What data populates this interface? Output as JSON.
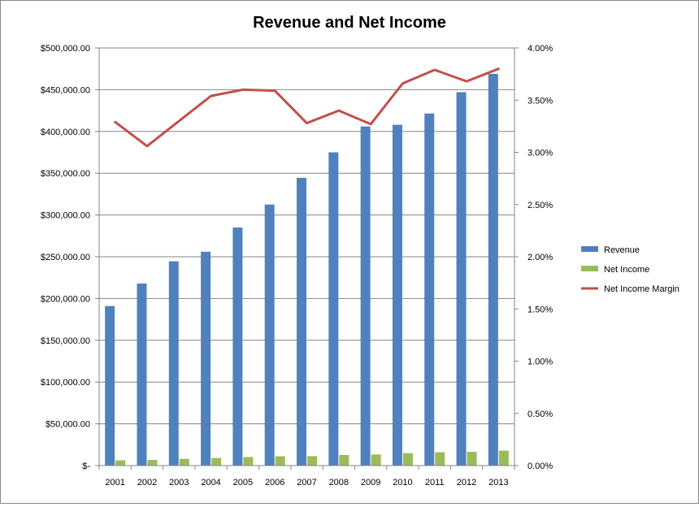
{
  "chart_data": {
    "type": "bar",
    "title": "Revenue and Net Income",
    "categories": [
      "2001",
      "2002",
      "2003",
      "2004",
      "2005",
      "2006",
      "2007",
      "2008",
      "2009",
      "2010",
      "2011",
      "2012",
      "2013"
    ],
    "series": [
      {
        "name": "Revenue",
        "type": "bar",
        "axis": "left",
        "color": "#4F81BD",
        "values": [
          191000,
          218000,
          244500,
          256000,
          285000,
          312500,
          344500,
          375000,
          406000,
          408000,
          421500,
          447000,
          469000
        ]
      },
      {
        "name": "Net Income",
        "type": "bar",
        "axis": "left",
        "color": "#9BBB59",
        "values": [
          6300,
          6700,
          8000,
          9100,
          10300,
          11200,
          11300,
          12700,
          13300,
          14900,
          16000,
          16400,
          17800
        ]
      },
      {
        "name": "Net Income Margin",
        "type": "line",
        "axis": "right",
        "color": "#C0504D",
        "values": [
          0.0329,
          0.0306,
          0.033,
          0.0354,
          0.036,
          0.0359,
          0.0328,
          0.034,
          0.0327,
          0.0366,
          0.0379,
          0.0368,
          0.038
        ]
      }
    ],
    "y_left": {
      "ylim": [
        0,
        500000
      ],
      "tick_labels": [
        "$-",
        "$50,000.00",
        "$100,000.00",
        "$150,000.00",
        "$200,000.00",
        "$250,000.00",
        "$300,000.00",
        "$350,000.00",
        "$400,000.00",
        "$450,000.00",
        "$500,000.00"
      ]
    },
    "y_right": {
      "ylim": [
        0,
        0.04
      ],
      "tick_labels": [
        "0.00%",
        "0.50%",
        "1.00%",
        "1.50%",
        "2.00%",
        "2.50%",
        "3.00%",
        "3.50%",
        "4.00%"
      ]
    },
    "grid": true,
    "legend_position": "right"
  }
}
